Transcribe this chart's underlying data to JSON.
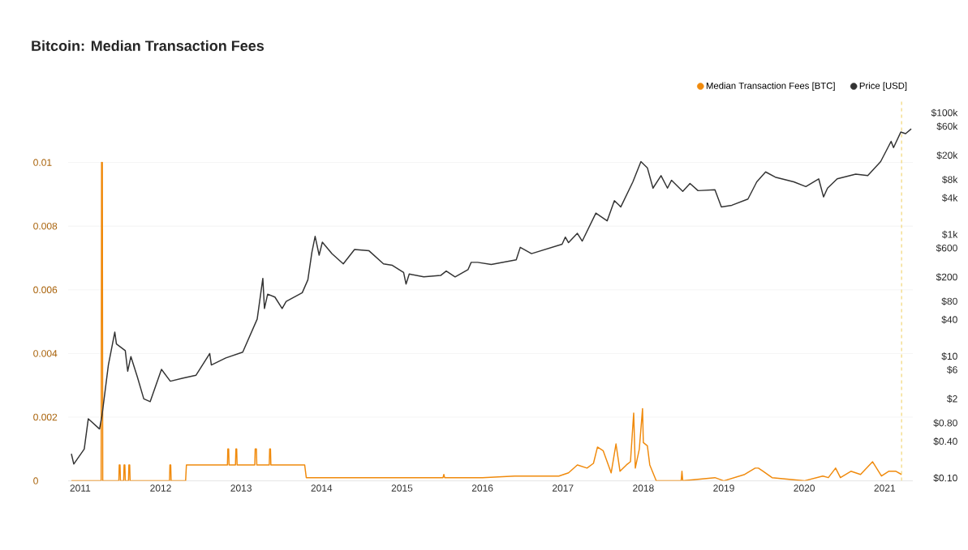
{
  "chart_data": {
    "type": "line",
    "title": "Bitcoin: Median Transaction Fees",
    "xlim": [
      2010.85,
      2021.35
    ],
    "xticks": [
      2011,
      2012,
      2013,
      2014,
      2015,
      2016,
      2017,
      2018,
      2019,
      2020,
      2021
    ],
    "ylim": [
      0,
      0.012
    ],
    "yticks": [
      0,
      0.002,
      0.004,
      0.006,
      0.008,
      0.01
    ],
    "y2lim": [
      0.09,
      170000
    ],
    "log": "y2",
    "y2ticks": [
      {
        "value": 100000,
        "label": "$100k"
      },
      {
        "value": 60000,
        "label": "$60k"
      },
      {
        "value": 20000,
        "label": "$20k"
      },
      {
        "value": 8000,
        "label": "$8k"
      },
      {
        "value": 4000,
        "label": "$4k"
      },
      {
        "value": 1000,
        "label": "$1k"
      },
      {
        "value": 600,
        "label": "$600"
      },
      {
        "value": 200,
        "label": "$200"
      },
      {
        "value": 80,
        "label": "$80"
      },
      {
        "value": 40,
        "label": "$40"
      },
      {
        "value": 10,
        "label": "$10"
      },
      {
        "value": 6,
        "label": "$6"
      },
      {
        "value": 2,
        "label": "$2"
      },
      {
        "value": 0.8,
        "label": "$0.80"
      },
      {
        "value": 0.4,
        "label": "$0.40"
      },
      {
        "value": 0.1,
        "label": "$0.10"
      }
    ],
    "grid": "y",
    "legend": "top right",
    "marker": "none",
    "line_style": "solid",
    "ref_lines": [
      {
        "axis": "x",
        "value": 2021.21,
        "color": "#f2d675",
        "line_style": "dashed"
      }
    ],
    "series": [
      {
        "name": "Median Transaction Fees [BTC]",
        "color": "#f08a0c",
        "x": [
          2010.89,
          2011.26,
          2011.265,
          2011.275,
          2011.28,
          2011.48,
          2011.485,
          2011.495,
          2011.5,
          2011.54,
          2011.545,
          2011.555,
          2011.56,
          2011.6,
          2011.605,
          2011.615,
          2011.62,
          2012.11,
          2012.115,
          2012.125,
          2012.13,
          2012.31,
          2012.32,
          2012.83,
          2012.835,
          2012.845,
          2012.85,
          2012.93,
          2012.935,
          2012.945,
          2012.95,
          2013.17,
          2013.175,
          2013.19,
          2013.195,
          2013.35,
          2013.355,
          2013.365,
          2013.37,
          2013.79,
          2013.81,
          2015.51,
          2015.52,
          2015.53,
          2016.0,
          2016.4,
          2016.95,
          2017.07,
          2017.18,
          2017.3,
          2017.38,
          2017.43,
          2017.5,
          2017.6,
          2017.66,
          2017.71,
          2017.79,
          2017.84,
          2017.88,
          2017.9,
          2017.95,
          2017.99,
          2018.0,
          2018.05,
          2018.08,
          2018.16,
          2018.47,
          2018.48,
          2018.49,
          2018.89,
          2019.0,
          2019.26,
          2019.39,
          2019.43,
          2019.49,
          2019.6,
          2020.0,
          2020.23,
          2020.3,
          2020.39,
          2020.45,
          2020.58,
          2020.7,
          2020.85,
          2020.96,
          2021.05,
          2021.14,
          2021.21
        ],
        "values": [
          0,
          0,
          0.01,
          0.01,
          0,
          0,
          0.0005,
          0.0005,
          0,
          0,
          0.0005,
          0.0005,
          0,
          0,
          0.0005,
          0.0005,
          0,
          0,
          0.0005,
          0.0005,
          0,
          0,
          0.0005,
          0.0005,
          0.001,
          0.001,
          0.0005,
          0.0005,
          0.001,
          0.001,
          0.0005,
          0.0005,
          0.001,
          0.001,
          0.0005,
          0.0005,
          0.001,
          0.001,
          0.0005,
          0.0005,
          0.0001,
          0.0001,
          0.0002,
          0.0001,
          0.0001,
          0.00015,
          0.00015,
          0.00025,
          0.0005,
          0.0004,
          0.00055,
          0.00106,
          0.00095,
          0.00025,
          0.00116,
          0.0003,
          0.0005,
          0.0006,
          0.00213,
          0.0004,
          0.001,
          0.00227,
          0.0012,
          0.0011,
          0.0005,
          0,
          0,
          0.0003,
          0,
          0.0001,
          0,
          0.0002,
          0.0004,
          0.0004,
          0.0003,
          0.0001,
          0,
          0.00015,
          0.0001,
          0.0004,
          0.0001,
          0.0003,
          0.0002,
          0.0006,
          0.00015,
          0.0003,
          0.0003,
          0.0002
        ]
      },
      {
        "name": "Price [USD]",
        "color": "#333333",
        "axis": "y2",
        "x": [
          2010.89,
          2010.92,
          2011.05,
          2011.1,
          2011.24,
          2011.27,
          2011.35,
          2011.43,
          2011.45,
          2011.56,
          2011.59,
          2011.63,
          2011.71,
          2011.79,
          2011.87,
          2012.01,
          2012.12,
          2012.28,
          2012.44,
          2012.61,
          2012.63,
          2012.81,
          2013.02,
          2013.2,
          2013.27,
          2013.29,
          2013.33,
          2013.42,
          2013.51,
          2013.56,
          2013.76,
          2013.83,
          2013.88,
          2013.92,
          2013.97,
          2014.01,
          2014.13,
          2014.27,
          2014.41,
          2014.59,
          2014.77,
          2014.88,
          2015.02,
          2015.05,
          2015.09,
          2015.27,
          2015.48,
          2015.55,
          2015.66,
          2015.82,
          2015.86,
          2015.94,
          2016.11,
          2016.42,
          2016.47,
          2016.61,
          2016.99,
          2017.03,
          2017.07,
          2017.18,
          2017.24,
          2017.41,
          2017.55,
          2017.64,
          2017.72,
          2017.87,
          2017.97,
          2018.05,
          2018.12,
          2018.22,
          2018.3,
          2018.35,
          2018.49,
          2018.58,
          2018.68,
          2018.89,
          2018.97,
          2019.1,
          2019.3,
          2019.41,
          2019.52,
          2019.64,
          2019.87,
          2020.02,
          2020.18,
          2020.24,
          2020.29,
          2020.41,
          2020.64,
          2020.79,
          2020.95,
          2021.08,
          2021.11,
          2021.2,
          2021.26,
          2021.33
        ],
        "values": [
          0.25,
          0.17,
          0.3,
          0.94,
          0.64,
          1.05,
          7.2,
          25,
          16,
          12.4,
          5.7,
          9.9,
          4.6,
          2.0,
          1.8,
          6.1,
          3.9,
          4.4,
          4.9,
          11.1,
          7.2,
          9.4,
          11.7,
          41,
          191,
          61,
          105,
          94,
          61,
          80,
          111,
          181,
          513,
          935,
          459,
          752,
          485,
          330,
          570,
          542,
          330,
          313,
          238,
          154,
          225,
          202,
          213,
          252,
          202,
          265,
          350,
          350,
          323,
          385,
          617,
          487,
          694,
          910,
          736,
          1047,
          780,
          2250,
          1680,
          3610,
          2850,
          7350,
          15800,
          12500,
          5800,
          9300,
          5800,
          7800,
          5140,
          6900,
          5270,
          5470,
          2850,
          3030,
          3830,
          7350,
          10700,
          8780,
          7350,
          6140,
          8240,
          4160,
          5800,
          8240,
          9840,
          9300,
          15800,
          34000,
          26800,
          48300,
          45600,
          54500
        ]
      }
    ]
  }
}
